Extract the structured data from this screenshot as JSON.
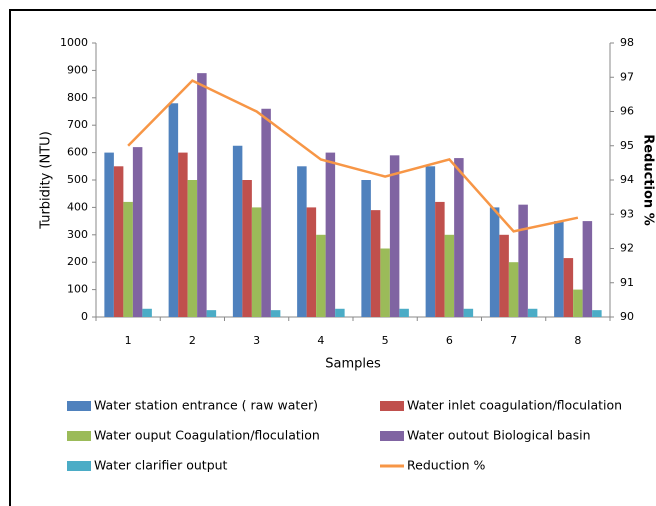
{
  "chart_data": {
    "type": "bar",
    "x_label": "Samples",
    "y_label": "Turbidity (NTU)",
    "y2_label": "Reduction %",
    "categories": [
      "1",
      "2",
      "3",
      "4",
      "5",
      "6",
      "7",
      "8"
    ],
    "series": [
      {
        "name": "Water station entrance ( raw water)",
        "color": "#4f81bd",
        "values": [
          600,
          780,
          625,
          550,
          500,
          550,
          400,
          350
        ]
      },
      {
        "name": "Water inlet coagulation/floculation",
        "color": "#c0504d",
        "values": [
          550,
          600,
          500,
          400,
          390,
          420,
          300,
          215
        ]
      },
      {
        "name": "Water ouput Coagulation/floculation",
        "color": "#9bbb59",
        "values": [
          420,
          500,
          400,
          300,
          250,
          300,
          200,
          100
        ]
      },
      {
        "name": "Water outout Biological basin",
        "color": "#8064a2",
        "values": [
          620,
          890,
          760,
          600,
          590,
          580,
          410,
          350
        ]
      },
      {
        "name": "Water clarifier output",
        "color": "#4bacc6",
        "values": [
          30,
          25,
          25,
          30,
          30,
          30,
          30,
          25
        ]
      },
      {
        "name": "Reduction %",
        "color": "#f79646",
        "type": "line",
        "axis": "y2",
        "values": [
          95.0,
          96.9,
          96.0,
          94.6,
          94.1,
          94.6,
          92.5,
          92.9
        ]
      }
    ],
    "ylim": [
      0,
      1000
    ],
    "yticks": [
      0,
      100,
      200,
      300,
      400,
      500,
      600,
      700,
      800,
      900,
      1000
    ],
    "y2lim": [
      90,
      98
    ],
    "y2ticks": [
      90,
      91,
      92,
      93,
      94,
      95,
      96,
      97,
      98
    ],
    "grid": false
  }
}
